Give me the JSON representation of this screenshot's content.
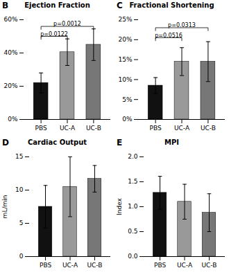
{
  "chart_data": [
    {
      "type": "bar",
      "title": "Ejection Fraction",
      "categories": [
        "PBS",
        "UC-A",
        "UC-B"
      ],
      "values": [
        22.0,
        40.5,
        45.0
      ],
      "errors": [
        6.0,
        8.0,
        9.5
      ],
      "colors": [
        "#111111",
        "#999999",
        "#777777"
      ],
      "ylim": [
        0,
        60
      ],
      "yticks": [
        {
          "value": 0,
          "label": "0%"
        },
        {
          "value": 20,
          "label": "20%"
        },
        {
          "value": 40,
          "label": "40%"
        },
        {
          "value": 60,
          "label": "60%"
        }
      ],
      "annotations": [
        {
          "text": "B"
        },
        {
          "text": "p=0.0122",
          "x1": "PBS",
          "x2": "UC-A",
          "y": 50
        },
        {
          "text": "p=0.0012",
          "x1": "PBS",
          "x2": "UC-B",
          "y": 56
        }
      ]
    },
    {
      "type": "bar",
      "title": "Fractional Shortening",
      "categories": [
        "PBS",
        "UC-A",
        "UC-B"
      ],
      "values": [
        8.5,
        14.5,
        14.5
      ],
      "errors": [
        2.0,
        3.5,
        5.0
      ],
      "colors": [
        "#111111",
        "#999999",
        "#777777"
      ],
      "ylim": [
        0,
        25
      ],
      "yticks": [
        {
          "value": 0,
          "label": "0%"
        },
        {
          "value": 5,
          "label": "5%"
        },
        {
          "value": 10,
          "label": "10%"
        },
        {
          "value": 15,
          "label": "15%"
        },
        {
          "value": 20,
          "label": "20%"
        },
        {
          "value": 25,
          "label": "25%"
        }
      ],
      "annotations": [
        {
          "text": "C"
        },
        {
          "text": "p=0.0516",
          "x1": "PBS",
          "x2": "UC-A",
          "y": 20.5
        },
        {
          "text": "p=0.0313",
          "x1": "PBS",
          "x2": "UC-B",
          "y": 23.0
        }
      ]
    },
    {
      "type": "bar",
      "title": "Cardiac Output",
      "ylabel": "mL/min",
      "categories": [
        "PBS",
        "UC-A",
        "UC-B"
      ],
      "values": [
        7.5,
        10.5,
        11.7
      ],
      "errors": [
        3.2,
        4.5,
        2.0
      ],
      "colors": [
        "#111111",
        "#999999",
        "#777777"
      ],
      "ylim": [
        0,
        15
      ],
      "yticks": [
        0,
        5,
        10,
        15
      ],
      "annotations": [
        {
          "text": "D"
        }
      ]
    },
    {
      "type": "bar",
      "title": "MPI",
      "ylabel": "Index",
      "categories": [
        "PBS",
        "UC-A",
        "UC-B"
      ],
      "values": [
        1.28,
        1.1,
        0.88
      ],
      "errors": [
        0.33,
        0.35,
        0.38
      ],
      "colors": [
        "#111111",
        "#999999",
        "#777777"
      ],
      "ylim": [
        0.0,
        2.0
      ],
      "yticks": [
        {
          "value": 0.0,
          "label": "0.0"
        },
        0.5,
        {
          "value": 1.0,
          "label": "1.0"
        },
        1.5,
        {
          "value": 2.0,
          "label": "2.0"
        }
      ],
      "annotations": [
        {
          "text": "E"
        }
      ]
    }
  ]
}
